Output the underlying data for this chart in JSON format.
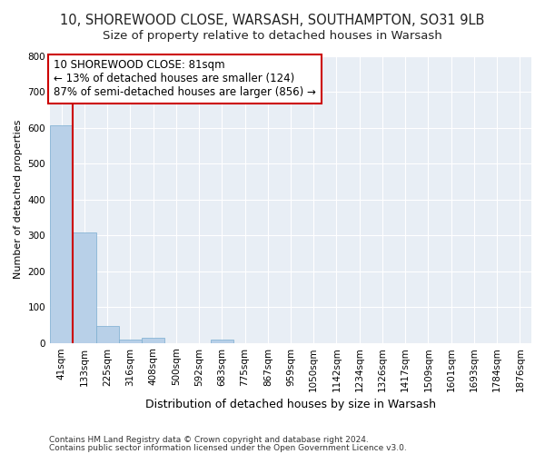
{
  "title1": "10, SHOREWOOD CLOSE, WARSASH, SOUTHAMPTON, SO31 9LB",
  "title2": "Size of property relative to detached houses in Warsash",
  "xlabel": "Distribution of detached houses by size in Warsash",
  "ylabel": "Number of detached properties",
  "bar_labels": [
    "41sqm",
    "133sqm",
    "225sqm",
    "316sqm",
    "408sqm",
    "500sqm",
    "592sqm",
    "683sqm",
    "775sqm",
    "867sqm",
    "959sqm",
    "1050sqm",
    "1142sqm",
    "1234sqm",
    "1326sqm",
    "1417sqm",
    "1509sqm",
    "1601sqm",
    "1693sqm",
    "1784sqm",
    "1876sqm"
  ],
  "bar_values": [
    606,
    308,
    48,
    10,
    13,
    0,
    0,
    8,
    0,
    0,
    0,
    0,
    0,
    0,
    0,
    0,
    0,
    0,
    0,
    0,
    0
  ],
  "bar_color": "#b8d0e8",
  "bar_edge_color": "#7aadd0",
  "property_line_x": 0.5,
  "annotation_line1": "10 SHOREWOOD CLOSE: 81sqm",
  "annotation_line2": "← 13% of detached houses are smaller (124)",
  "annotation_line3": "87% of semi-detached houses are larger (856) →",
  "annotation_box_color": "#ffffff",
  "annotation_border_color": "#cc0000",
  "ylim": [
    0,
    800
  ],
  "yticks": [
    0,
    100,
    200,
    300,
    400,
    500,
    600,
    700,
    800
  ],
  "bg_color": "#e8eef5",
  "grid_color": "#ffffff",
  "footer1": "Contains HM Land Registry data © Crown copyright and database right 2024.",
  "footer2": "Contains public sector information licensed under the Open Government Licence v3.0.",
  "title1_fontsize": 10.5,
  "title2_fontsize": 9.5,
  "annotation_fontsize": 8.5,
  "ylabel_fontsize": 8,
  "xlabel_fontsize": 9,
  "tick_fontsize": 7.5,
  "footer_fontsize": 6.5
}
